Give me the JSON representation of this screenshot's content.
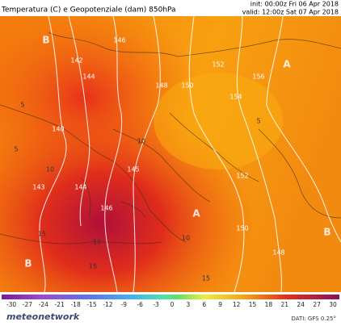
{
  "header": {
    "title": "Temperatura (C) e Geopotenziale (dam) 850hPa",
    "init": "init: 00:00z Fri 06 Apr 2018",
    "valid": "valid: 12:00z Sat 07 Apr 2018"
  },
  "map": {
    "geopotential_labels": [
      140,
      142,
      144,
      146,
      148,
      150,
      152,
      154,
      156,
      143,
      144,
      145,
      146,
      152,
      150,
      148
    ],
    "temperature_labels": [
      5,
      10,
      15,
      10,
      5,
      15,
      10,
      15,
      10,
      5
    ],
    "pressure_centers": [
      "A",
      "A",
      "B",
      "B",
      "B"
    ]
  },
  "colorbar": {
    "ticks": [
      -30,
      -27,
      -24,
      -21,
      -18,
      -15,
      -12,
      -9,
      -6,
      -3,
      0,
      3,
      6,
      9,
      12,
      15,
      18,
      21,
      24,
      27,
      30
    ]
  },
  "footer": {
    "brand": "meteonetwork",
    "source": "DATI: GFS 0.25°"
  }
}
